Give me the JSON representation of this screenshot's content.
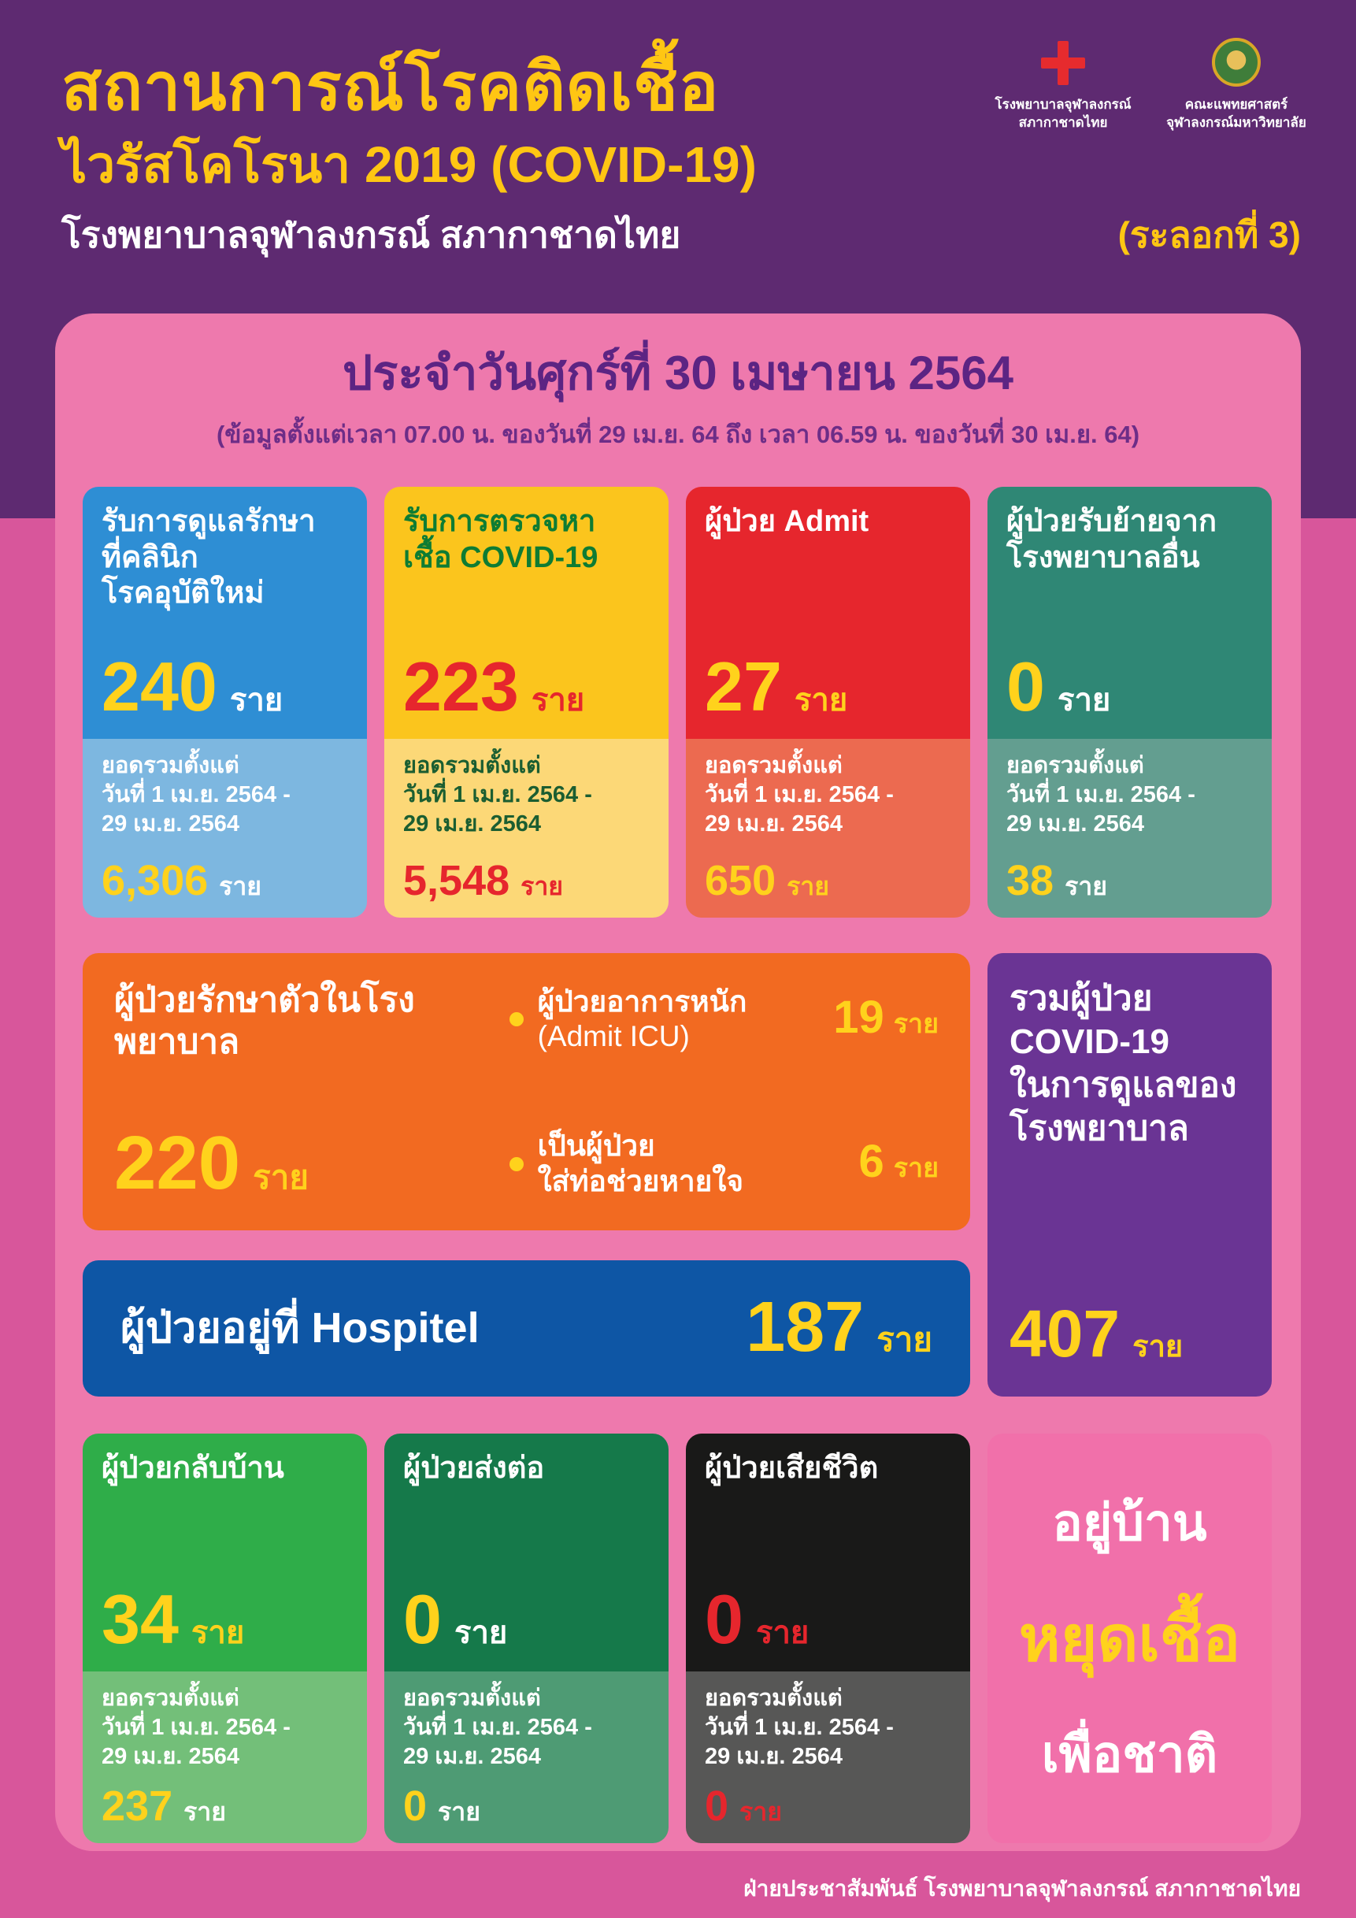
{
  "colors": {
    "accent_gold": "#ffd21c",
    "title_gold": "#ffc613",
    "purple_bg": "#5e2a71",
    "pink_bg": "#d8569b",
    "card_pink": "#ee79ad",
    "alert_red": "#e6262d"
  },
  "header": {
    "title_line1": "สถานการณ์โรคติดเชื้อ",
    "title_line2": "ไวรัสโคโรนา 2019 (COVID-19)",
    "subtitle": "โรงพยาบาลจุฬาลงกรณ์ สภากาชาดไทย",
    "wave": "(ระลอกที่ 3)",
    "logo1_caption": "โรงพยาบาลจุฬาลงกรณ์\nสภากาชาดไทย",
    "logo2_caption": "คณะแพทยศาสตร์\nจุฬาลงกรณ์มหาวิทยาลัย"
  },
  "report": {
    "date_title": "ประจำวันศุกร์ที่ 30 เมษายน 2564",
    "date_range": "(ข้อมูลตั้งแต่เวลา 07.00 น. ของวันที่ 29 เม.ย. 64 ถึง เวลา 06.59 น. ของวันที่ 30 เม.ย. 64)"
  },
  "unit": "ราย",
  "cumulative_label": "ยอดรวมตั้งแต่\nวันที่ 1 เม.ย. 2564 -\n29 เม.ย. 2564",
  "cards_row1": [
    {
      "title": "รับการดูแลรักษา\nที่คลินิก\nโรคอุบัติใหม่",
      "value": "240",
      "cumulative": "6,306"
    },
    {
      "title": "รับการตรวจหา\nเชื้อ COVID-19",
      "value": "223",
      "cumulative": "5,548"
    },
    {
      "title": "ผู้ป่วย Admit",
      "value": "27",
      "cumulative": "650"
    },
    {
      "title": "ผู้ป่วยรับย้ายจาก\nโรงพยาบาลอื่น",
      "value": "0",
      "cumulative": "38"
    }
  ],
  "inpatient_card": {
    "title": "ผู้ป่วยรักษาตัวในโรงพยาบาล",
    "value": "220",
    "bullets": [
      {
        "label": "ผู้ป่วยอาการหนัก",
        "sublabel": "(Admit ICU)",
        "value": "19"
      },
      {
        "label": "เป็นผู้ป่วย\nใส่ท่อช่วยหายใจ",
        "sublabel": "",
        "value": "6"
      }
    ]
  },
  "total_card": {
    "title": "รวมผู้ป่วย\nCOVID-19\nในการดูแลของ\nโรงพยาบาล",
    "value": "407"
  },
  "hospitel_bar": {
    "title": "ผู้ป่วยอยู่ที่ Hospitel",
    "value": "187"
  },
  "cards_row3": [
    {
      "title": "ผู้ป่วยกลับบ้าน",
      "value": "34",
      "cumulative": "237"
    },
    {
      "title": "ผู้ป่วยส่งต่อ",
      "value": "0",
      "cumulative": "0"
    },
    {
      "title": "ผู้ป่วยเสียชีวิต",
      "value": "0",
      "cumulative": "0"
    }
  ],
  "slogan": {
    "line1": "อยู่บ้าน",
    "line2": "หยุดเชื้อ",
    "line3": "เพื่อชาติ"
  },
  "footer": "ฝ่ายประชาสัมพันธ์ โรงพยาบาลจุฬาลงกรณ์ สภากาชาดไทย"
}
